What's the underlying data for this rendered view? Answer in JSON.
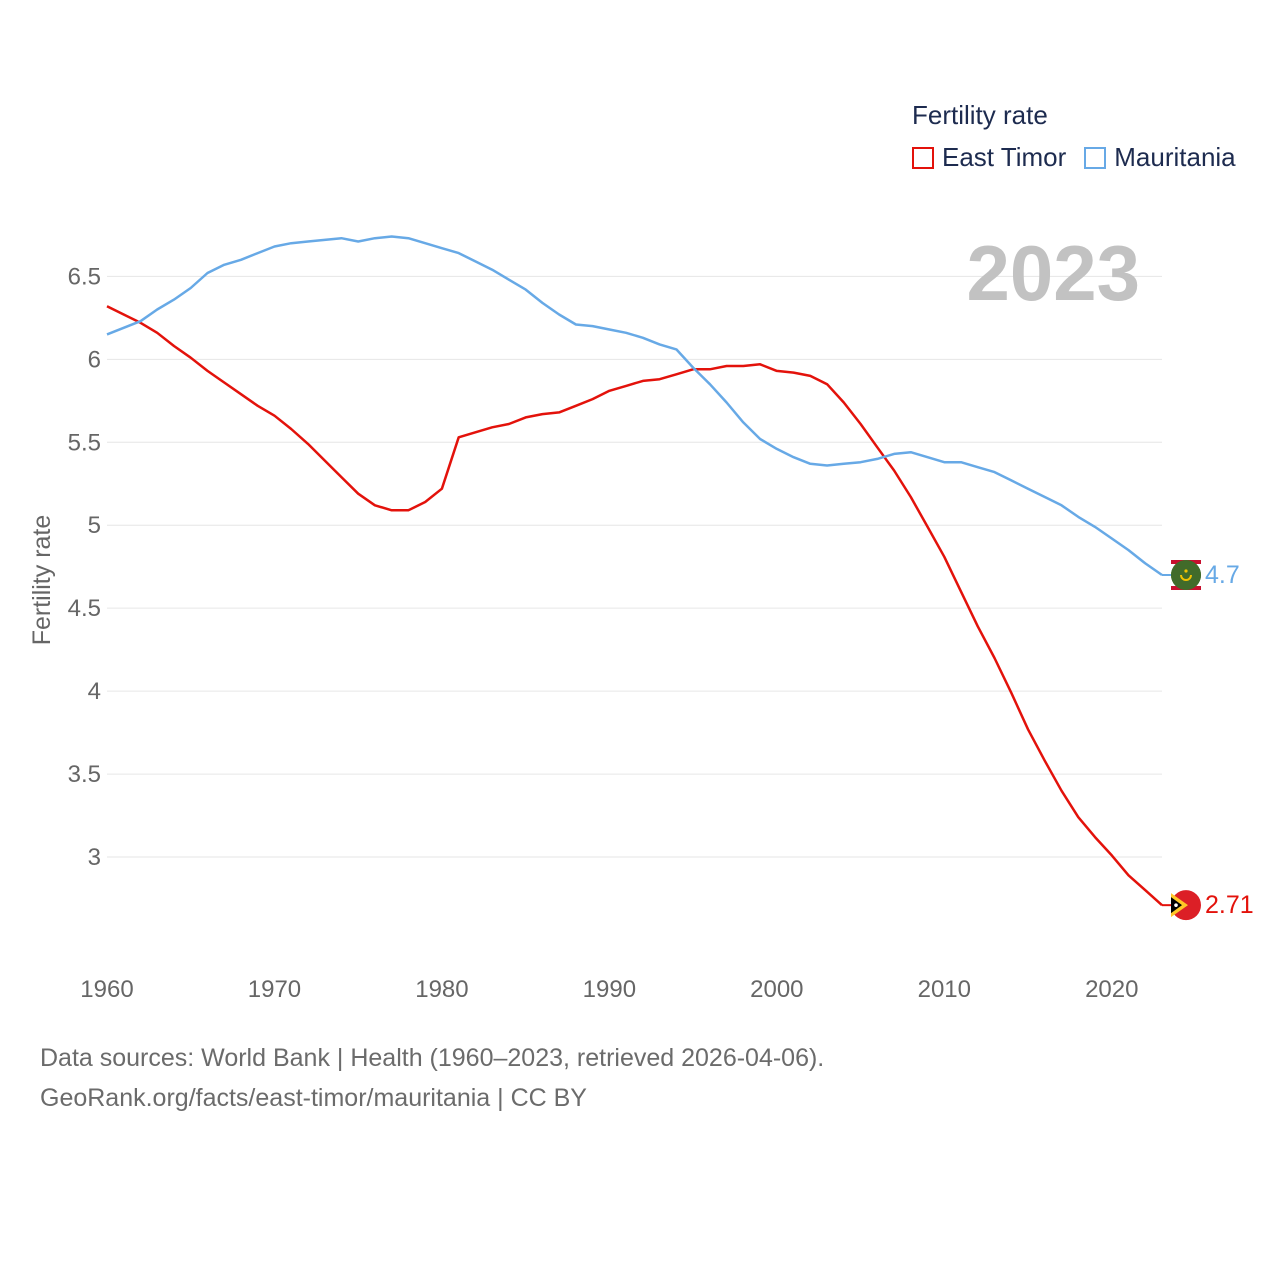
{
  "legend": {
    "title": "Fertility rate",
    "items": [
      {
        "label": "East Timor",
        "color": "#e3120b"
      },
      {
        "label": "Mauritania",
        "color": "#67a9e6"
      }
    ]
  },
  "year_label": "2023",
  "footer": {
    "line1": "Data sources: World Bank | Health (1960–2023, retrieved 2026-04-06).",
    "line2": "GeoRank.org/facts/east-timor/mauritania | CC BY"
  },
  "chart_data": {
    "type": "line",
    "title": "Fertility rate",
    "xlabel": "",
    "ylabel": "Fertility rate",
    "xlim": [
      1960,
      2023
    ],
    "ylim": [
      2.5,
      6.9
    ],
    "x_ticks": [
      1960,
      1970,
      1980,
      1990,
      2000,
      2010,
      2020
    ],
    "y_ticks": [
      3,
      3.5,
      4,
      4.5,
      5,
      5.5,
      6,
      6.5
    ],
    "y_tick_labels": [
      "3",
      "3.5",
      "4",
      "4.5",
      "5",
      "5.5",
      "6",
      "6.5"
    ],
    "grid": true,
    "series": [
      {
        "name": "East Timor",
        "color": "#e3120b",
        "end_label": "2.71",
        "flag": "east-timor",
        "x": [
          1960,
          1961,
          1962,
          1963,
          1964,
          1965,
          1966,
          1967,
          1968,
          1969,
          1970,
          1971,
          1972,
          1973,
          1974,
          1975,
          1976,
          1977,
          1978,
          1979,
          1980,
          1981,
          1982,
          1983,
          1984,
          1985,
          1986,
          1987,
          1988,
          1989,
          1990,
          1991,
          1992,
          1993,
          1994,
          1995,
          1996,
          1997,
          1998,
          1999,
          2000,
          2001,
          2002,
          2003,
          2004,
          2005,
          2006,
          2007,
          2008,
          2009,
          2010,
          2011,
          2012,
          2013,
          2014,
          2015,
          2016,
          2017,
          2018,
          2019,
          2020,
          2021,
          2022,
          2023
        ],
        "values": [
          6.32,
          6.27,
          6.22,
          6.16,
          6.08,
          6.01,
          5.93,
          5.86,
          5.79,
          5.72,
          5.66,
          5.58,
          5.49,
          5.39,
          5.29,
          5.19,
          5.12,
          5.09,
          5.09,
          5.14,
          5.22,
          5.53,
          5.56,
          5.59,
          5.61,
          5.65,
          5.67,
          5.68,
          5.72,
          5.76,
          5.81,
          5.84,
          5.87,
          5.88,
          5.91,
          5.94,
          5.94,
          5.96,
          5.96,
          5.97,
          5.93,
          5.92,
          5.9,
          5.85,
          5.74,
          5.61,
          5.47,
          5.33,
          5.17,
          4.99,
          4.81,
          4.6,
          4.39,
          4.2,
          3.99,
          3.77,
          3.58,
          3.4,
          3.24,
          3.12,
          3.01,
          2.89,
          2.8,
          2.71
        ]
      },
      {
        "name": "Mauritania",
        "color": "#67a9e6",
        "end_label": "4.7",
        "flag": "mauritania",
        "x": [
          1960,
          1961,
          1962,
          1963,
          1964,
          1965,
          1966,
          1967,
          1968,
          1969,
          1970,
          1971,
          1972,
          1973,
          1974,
          1975,
          1976,
          1977,
          1978,
          1979,
          1980,
          1981,
          1982,
          1983,
          1984,
          1985,
          1986,
          1987,
          1988,
          1989,
          1990,
          1991,
          1992,
          1993,
          1994,
          1995,
          1996,
          1997,
          1998,
          1999,
          2000,
          2001,
          2002,
          2003,
          2004,
          2005,
          2006,
          2007,
          2008,
          2009,
          2010,
          2011,
          2012,
          2013,
          2014,
          2015,
          2016,
          2017,
          2018,
          2019,
          2020,
          2021,
          2022,
          2023
        ],
        "values": [
          6.15,
          6.19,
          6.23,
          6.3,
          6.36,
          6.43,
          6.52,
          6.57,
          6.6,
          6.64,
          6.68,
          6.7,
          6.71,
          6.72,
          6.73,
          6.71,
          6.73,
          6.74,
          6.73,
          6.7,
          6.67,
          6.64,
          6.59,
          6.54,
          6.48,
          6.42,
          6.34,
          6.27,
          6.21,
          6.2,
          6.18,
          6.16,
          6.13,
          6.09,
          6.06,
          5.95,
          5.85,
          5.74,
          5.62,
          5.52,
          5.46,
          5.41,
          5.37,
          5.36,
          5.37,
          5.38,
          5.4,
          5.43,
          5.44,
          5.41,
          5.38,
          5.38,
          5.35,
          5.32,
          5.27,
          5.22,
          5.17,
          5.12,
          5.05,
          4.99,
          4.92,
          4.85,
          4.77,
          4.7
        ]
      }
    ]
  }
}
